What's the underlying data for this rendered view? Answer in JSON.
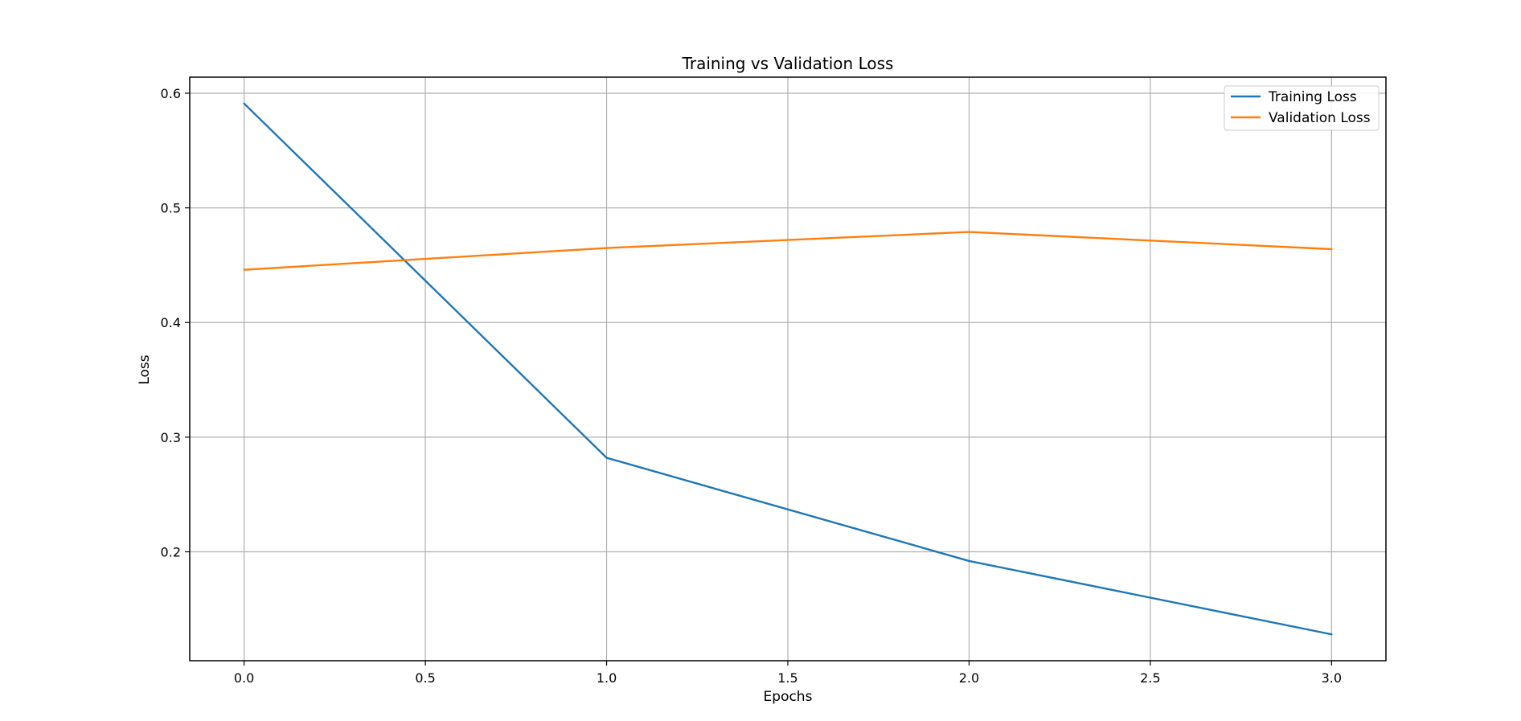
{
  "chart_data": {
    "type": "line",
    "title": "Training vs Validation Loss",
    "xlabel": "Epochs",
    "ylabel": "Loss",
    "x": [
      0,
      1,
      2,
      3
    ],
    "xlim": [
      -0.15,
      3.15
    ],
    "ylim": [
      0.105,
      0.614
    ],
    "xticks": [
      0.0,
      0.5,
      1.0,
      1.5,
      2.0,
      2.5,
      3.0
    ],
    "xtick_labels": [
      "0.0",
      "0.5",
      "1.0",
      "1.5",
      "2.0",
      "2.5",
      "3.0"
    ],
    "yticks": [
      0.2,
      0.3,
      0.4,
      0.5,
      0.6
    ],
    "ytick_labels": [
      "0.2",
      "0.3",
      "0.4",
      "0.5",
      "0.6"
    ],
    "grid": true,
    "legend_position": "top-right",
    "series": [
      {
        "name": "Training Loss",
        "color": "#1f77b4",
        "values": [
          0.591,
          0.282,
          0.192,
          0.128
        ]
      },
      {
        "name": "Validation Loss",
        "color": "#ff7f0e",
        "values": [
          0.446,
          0.465,
          0.479,
          0.464
        ]
      }
    ]
  }
}
